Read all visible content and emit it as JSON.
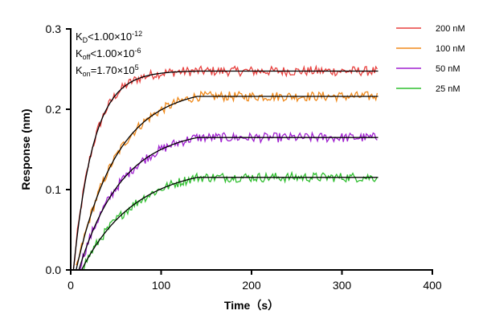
{
  "chart_data": {
    "type": "line",
    "title": "",
    "xlabel": "Time（s）",
    "ylabel": "Response (nm)",
    "xlim": [
      0,
      400
    ],
    "ylim": [
      0,
      0.3
    ],
    "xticks": [
      "0",
      "100",
      "200",
      "300",
      "400"
    ],
    "yticks": [
      "0.0",
      "0.1",
      "0.2",
      "0.3"
    ],
    "grid": false,
    "legend_position": "top-right",
    "annotations": {
      "kd": {
        "label": "K",
        "sub": "D",
        "rel": "<1.00×10",
        "exp": "-12"
      },
      "koff": {
        "label": "K",
        "sub": "off",
        "rel": "<1.00×10",
        "exp": "-6"
      },
      "kon": {
        "label": "K",
        "sub": "on",
        "rel": "=1.70×10",
        "exp": "5"
      }
    },
    "association_end": 140,
    "data_end": 340,
    "fit_color": "#000000",
    "series": [
      {
        "name": "200 nM",
        "color": "#e8413f",
        "start": 3,
        "rmax": 0.248,
        "k": 0.045,
        "noise": 0.006
      },
      {
        "name": "100 nM",
        "color": "#f08a1c",
        "start": 6,
        "rmax": 0.228,
        "k": 0.022,
        "noise": 0.006
      },
      {
        "name": "50 nM",
        "color": "#a020d0",
        "start": 9,
        "rmax": 0.176,
        "k": 0.021,
        "noise": 0.006
      },
      {
        "name": "25 nM",
        "color": "#2fbf2f",
        "start": 12,
        "rmax": 0.13,
        "k": 0.017,
        "noise": 0.006
      }
    ]
  }
}
